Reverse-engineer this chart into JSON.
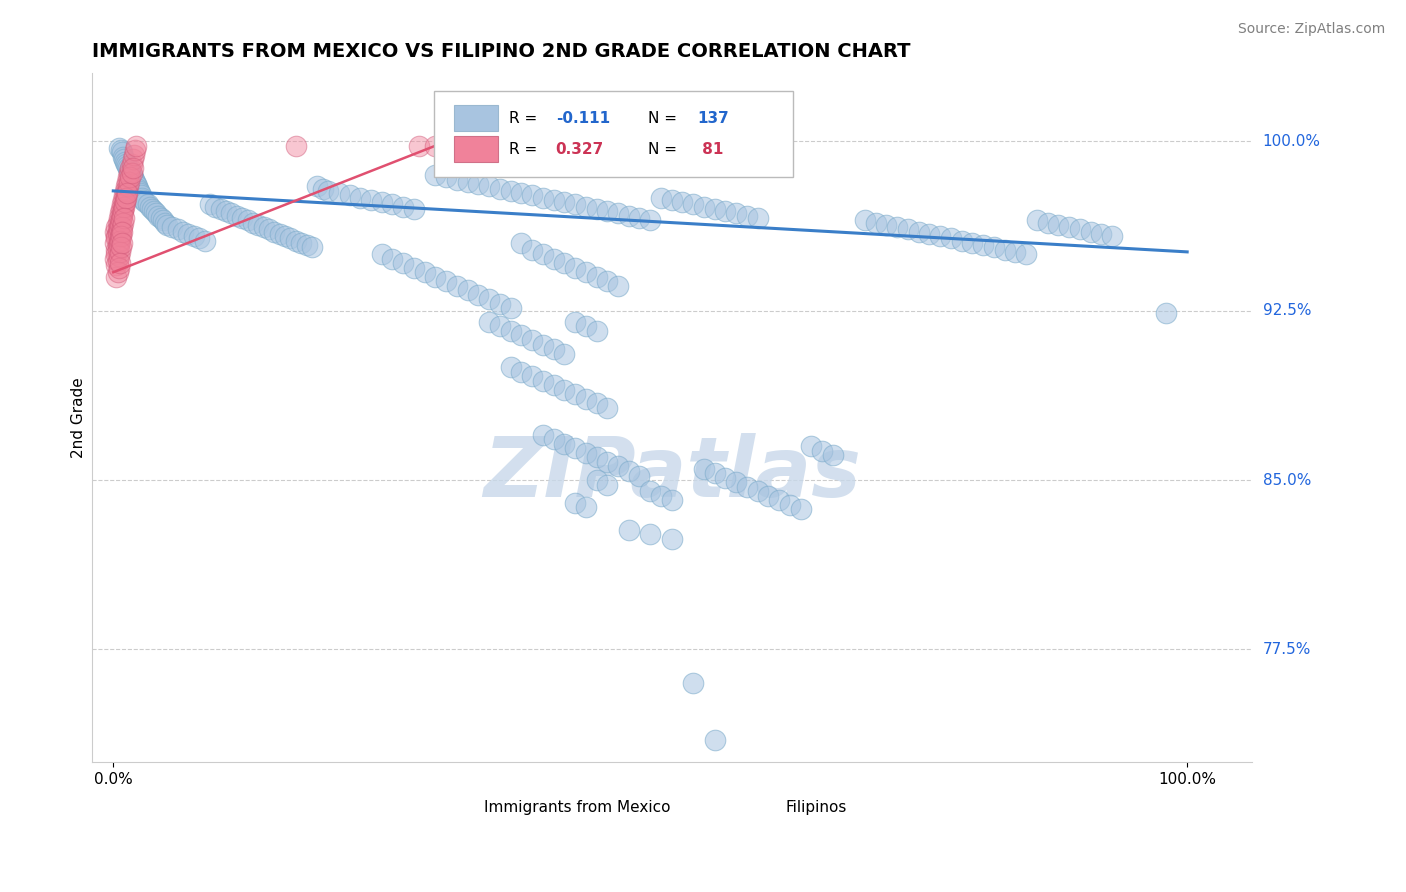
{
  "title": "IMMIGRANTS FROM MEXICO VS FILIPINO 2ND GRADE CORRELATION CHART",
  "source_text": "Source: ZipAtlas.com",
  "ylabel": "2nd Grade",
  "blue_scatter_color": "#a8c4e0",
  "pink_scatter_color": "#f0829a",
  "blue_line_color": "#3a7ec8",
  "pink_line_color": "#e05070",
  "blue_edge_color": "#7aaaca",
  "pink_edge_color": "#d05878",
  "ytick_labels": [
    "100.0%",
    "92.5%",
    "85.0%",
    "77.5%"
  ],
  "ytick_values": [
    1.0,
    0.925,
    0.85,
    0.775
  ],
  "xtick_labels": [
    "0.0%",
    "100.0%"
  ],
  "xtick_values": [
    0.0,
    1.0
  ],
  "xlim": [
    -0.02,
    1.06
  ],
  "ylim": [
    0.725,
    1.03
  ],
  "watermark_text": "ZIPatlas",
  "watermark_color": "#c8d8ea",
  "grid_color": "#cccccc",
  "title_fontsize": 14,
  "axis_label_fontsize": 11,
  "tick_label_fontsize": 11,
  "source_fontsize": 10,
  "legend_r_n": [
    {
      "R": "-0.111",
      "N": "137",
      "color": "#2266cc"
    },
    {
      "R": "0.327",
      "N": " 81",
      "color": "#cc3355"
    }
  ],
  "blue_dots": [
    [
      0.005,
      0.997
    ],
    [
      0.007,
      0.996
    ],
    [
      0.008,
      0.995
    ],
    [
      0.009,
      0.993
    ],
    [
      0.01,
      0.992
    ],
    [
      0.011,
      0.991
    ],
    [
      0.012,
      0.99
    ],
    [
      0.013,
      0.989
    ],
    [
      0.014,
      0.988
    ],
    [
      0.015,
      0.987
    ],
    [
      0.016,
      0.986
    ],
    [
      0.017,
      0.985
    ],
    [
      0.018,
      0.984
    ],
    [
      0.019,
      0.983
    ],
    [
      0.02,
      0.982
    ],
    [
      0.021,
      0.981
    ],
    [
      0.022,
      0.98
    ],
    [
      0.023,
      0.979
    ],
    [
      0.024,
      0.978
    ],
    [
      0.025,
      0.977
    ],
    [
      0.026,
      0.976
    ],
    [
      0.027,
      0.975
    ],
    [
      0.028,
      0.974
    ],
    [
      0.03,
      0.973
    ],
    [
      0.032,
      0.972
    ],
    [
      0.034,
      0.971
    ],
    [
      0.036,
      0.97
    ],
    [
      0.038,
      0.969
    ],
    [
      0.04,
      0.968
    ],
    [
      0.042,
      0.967
    ],
    [
      0.044,
      0.966
    ],
    [
      0.046,
      0.965
    ],
    [
      0.048,
      0.964
    ],
    [
      0.05,
      0.963
    ],
    [
      0.055,
      0.962
    ],
    [
      0.06,
      0.961
    ],
    [
      0.065,
      0.96
    ],
    [
      0.07,
      0.959
    ],
    [
      0.075,
      0.958
    ],
    [
      0.08,
      0.957
    ],
    [
      0.085,
      0.956
    ],
    [
      0.09,
      0.972
    ],
    [
      0.095,
      0.971
    ],
    [
      0.1,
      0.97
    ],
    [
      0.105,
      0.969
    ],
    [
      0.11,
      0.968
    ],
    [
      0.115,
      0.967
    ],
    [
      0.12,
      0.966
    ],
    [
      0.125,
      0.965
    ],
    [
      0.13,
      0.964
    ],
    [
      0.135,
      0.963
    ],
    [
      0.14,
      0.962
    ],
    [
      0.145,
      0.961
    ],
    [
      0.15,
      0.96
    ],
    [
      0.155,
      0.959
    ],
    [
      0.16,
      0.958
    ],
    [
      0.165,
      0.957
    ],
    [
      0.17,
      0.956
    ],
    [
      0.175,
      0.955
    ],
    [
      0.18,
      0.954
    ],
    [
      0.185,
      0.953
    ],
    [
      0.19,
      0.98
    ],
    [
      0.195,
      0.979
    ],
    [
      0.2,
      0.978
    ],
    [
      0.21,
      0.977
    ],
    [
      0.22,
      0.976
    ],
    [
      0.23,
      0.975
    ],
    [
      0.24,
      0.974
    ],
    [
      0.25,
      0.973
    ],
    [
      0.26,
      0.972
    ],
    [
      0.27,
      0.971
    ],
    [
      0.28,
      0.97
    ],
    [
      0.3,
      0.985
    ],
    [
      0.31,
      0.984
    ],
    [
      0.32,
      0.983
    ],
    [
      0.33,
      0.982
    ],
    [
      0.34,
      0.981
    ],
    [
      0.35,
      0.98
    ],
    [
      0.36,
      0.979
    ],
    [
      0.37,
      0.978
    ],
    [
      0.38,
      0.977
    ],
    [
      0.39,
      0.976
    ],
    [
      0.4,
      0.975
    ],
    [
      0.41,
      0.974
    ],
    [
      0.42,
      0.973
    ],
    [
      0.43,
      0.972
    ],
    [
      0.44,
      0.971
    ],
    [
      0.45,
      0.97
    ],
    [
      0.46,
      0.969
    ],
    [
      0.47,
      0.968
    ],
    [
      0.48,
      0.967
    ],
    [
      0.49,
      0.966
    ],
    [
      0.5,
      0.965
    ],
    [
      0.51,
      0.975
    ],
    [
      0.52,
      0.974
    ],
    [
      0.53,
      0.973
    ],
    [
      0.54,
      0.972
    ],
    [
      0.55,
      0.971
    ],
    [
      0.56,
      0.97
    ],
    [
      0.57,
      0.969
    ],
    [
      0.58,
      0.968
    ],
    [
      0.59,
      0.967
    ],
    [
      0.6,
      0.966
    ],
    [
      0.25,
      0.95
    ],
    [
      0.26,
      0.948
    ],
    [
      0.27,
      0.946
    ],
    [
      0.28,
      0.944
    ],
    [
      0.29,
      0.942
    ],
    [
      0.3,
      0.94
    ],
    [
      0.31,
      0.938
    ],
    [
      0.32,
      0.936
    ],
    [
      0.33,
      0.934
    ],
    [
      0.34,
      0.932
    ],
    [
      0.35,
      0.93
    ],
    [
      0.36,
      0.928
    ],
    [
      0.37,
      0.926
    ],
    [
      0.38,
      0.955
    ],
    [
      0.39,
      0.952
    ],
    [
      0.4,
      0.95
    ],
    [
      0.41,
      0.948
    ],
    [
      0.42,
      0.946
    ],
    [
      0.43,
      0.944
    ],
    [
      0.44,
      0.942
    ],
    [
      0.45,
      0.94
    ],
    [
      0.46,
      0.938
    ],
    [
      0.47,
      0.936
    ],
    [
      0.35,
      0.92
    ],
    [
      0.36,
      0.918
    ],
    [
      0.37,
      0.916
    ],
    [
      0.38,
      0.914
    ],
    [
      0.39,
      0.912
    ],
    [
      0.4,
      0.91
    ],
    [
      0.41,
      0.908
    ],
    [
      0.42,
      0.906
    ],
    [
      0.43,
      0.92
    ],
    [
      0.44,
      0.918
    ],
    [
      0.45,
      0.916
    ],
    [
      0.37,
      0.9
    ],
    [
      0.38,
      0.898
    ],
    [
      0.39,
      0.896
    ],
    [
      0.4,
      0.894
    ],
    [
      0.41,
      0.892
    ],
    [
      0.42,
      0.89
    ],
    [
      0.43,
      0.888
    ],
    [
      0.44,
      0.886
    ],
    [
      0.45,
      0.884
    ],
    [
      0.46,
      0.882
    ],
    [
      0.4,
      0.87
    ],
    [
      0.41,
      0.868
    ],
    [
      0.42,
      0.866
    ],
    [
      0.43,
      0.864
    ],
    [
      0.44,
      0.862
    ],
    [
      0.45,
      0.86
    ],
    [
      0.46,
      0.858
    ],
    [
      0.47,
      0.856
    ],
    [
      0.48,
      0.854
    ],
    [
      0.49,
      0.852
    ],
    [
      0.43,
      0.84
    ],
    [
      0.44,
      0.838
    ],
    [
      0.45,
      0.85
    ],
    [
      0.46,
      0.848
    ],
    [
      0.5,
      0.845
    ],
    [
      0.51,
      0.843
    ],
    [
      0.52,
      0.841
    ],
    [
      0.48,
      0.828
    ],
    [
      0.5,
      0.826
    ],
    [
      0.52,
      0.824
    ],
    [
      0.55,
      0.855
    ],
    [
      0.56,
      0.853
    ],
    [
      0.57,
      0.851
    ],
    [
      0.58,
      0.849
    ],
    [
      0.59,
      0.847
    ],
    [
      0.6,
      0.845
    ],
    [
      0.61,
      0.843
    ],
    [
      0.62,
      0.841
    ],
    [
      0.63,
      0.839
    ],
    [
      0.64,
      0.837
    ],
    [
      0.65,
      0.865
    ],
    [
      0.66,
      0.863
    ],
    [
      0.67,
      0.861
    ],
    [
      0.7,
      0.965
    ],
    [
      0.71,
      0.964
    ],
    [
      0.72,
      0.963
    ],
    [
      0.73,
      0.962
    ],
    [
      0.74,
      0.961
    ],
    [
      0.75,
      0.96
    ],
    [
      0.76,
      0.959
    ],
    [
      0.77,
      0.958
    ],
    [
      0.78,
      0.957
    ],
    [
      0.79,
      0.956
    ],
    [
      0.8,
      0.955
    ],
    [
      0.81,
      0.954
    ],
    [
      0.82,
      0.953
    ],
    [
      0.83,
      0.952
    ],
    [
      0.84,
      0.951
    ],
    [
      0.85,
      0.95
    ],
    [
      0.86,
      0.965
    ],
    [
      0.87,
      0.964
    ],
    [
      0.88,
      0.963
    ],
    [
      0.89,
      0.962
    ],
    [
      0.9,
      0.961
    ],
    [
      0.91,
      0.96
    ],
    [
      0.92,
      0.959
    ],
    [
      0.93,
      0.958
    ],
    [
      0.98,
      0.924
    ],
    [
      0.54,
      0.76
    ],
    [
      0.56,
      0.735
    ]
  ],
  "pink_dots": [
    [
      0.002,
      0.96
    ],
    [
      0.003,
      0.962
    ],
    [
      0.004,
      0.964
    ],
    [
      0.005,
      0.966
    ],
    [
      0.006,
      0.968
    ],
    [
      0.007,
      0.97
    ],
    [
      0.008,
      0.972
    ],
    [
      0.009,
      0.974
    ],
    [
      0.01,
      0.976
    ],
    [
      0.011,
      0.978
    ],
    [
      0.012,
      0.98
    ],
    [
      0.013,
      0.982
    ],
    [
      0.014,
      0.984
    ],
    [
      0.015,
      0.986
    ],
    [
      0.016,
      0.988
    ],
    [
      0.017,
      0.99
    ],
    [
      0.018,
      0.992
    ],
    [
      0.019,
      0.994
    ],
    [
      0.02,
      0.996
    ],
    [
      0.021,
      0.998
    ],
    [
      0.003,
      0.958
    ],
    [
      0.004,
      0.96
    ],
    [
      0.005,
      0.962
    ],
    [
      0.006,
      0.964
    ],
    [
      0.007,
      0.966
    ],
    [
      0.008,
      0.968
    ],
    [
      0.009,
      0.97
    ],
    [
      0.01,
      0.972
    ],
    [
      0.011,
      0.974
    ],
    [
      0.012,
      0.976
    ],
    [
      0.013,
      0.978
    ],
    [
      0.014,
      0.98
    ],
    [
      0.015,
      0.982
    ],
    [
      0.016,
      0.984
    ],
    [
      0.017,
      0.986
    ],
    [
      0.018,
      0.988
    ],
    [
      0.002,
      0.955
    ],
    [
      0.003,
      0.957
    ],
    [
      0.004,
      0.959
    ],
    [
      0.005,
      0.961
    ],
    [
      0.006,
      0.963
    ],
    [
      0.007,
      0.965
    ],
    [
      0.008,
      0.967
    ],
    [
      0.009,
      0.969
    ],
    [
      0.01,
      0.971
    ],
    [
      0.011,
      0.973
    ],
    [
      0.012,
      0.975
    ],
    [
      0.013,
      0.977
    ],
    [
      0.003,
      0.952
    ],
    [
      0.004,
      0.954
    ],
    [
      0.005,
      0.956
    ],
    [
      0.006,
      0.958
    ],
    [
      0.007,
      0.96
    ],
    [
      0.008,
      0.962
    ],
    [
      0.009,
      0.964
    ],
    [
      0.01,
      0.966
    ],
    [
      0.002,
      0.948
    ],
    [
      0.003,
      0.95
    ],
    [
      0.004,
      0.952
    ],
    [
      0.005,
      0.954
    ],
    [
      0.006,
      0.956
    ],
    [
      0.007,
      0.958
    ],
    [
      0.008,
      0.96
    ],
    [
      0.003,
      0.945
    ],
    [
      0.004,
      0.947
    ],
    [
      0.005,
      0.949
    ],
    [
      0.006,
      0.951
    ],
    [
      0.007,
      0.953
    ],
    [
      0.008,
      0.955
    ],
    [
      0.003,
      0.94
    ],
    [
      0.004,
      0.942
    ],
    [
      0.005,
      0.944
    ],
    [
      0.006,
      0.946
    ],
    [
      0.17,
      0.998
    ],
    [
      0.285,
      0.998
    ],
    [
      0.3,
      0.998
    ]
  ],
  "blue_line_x": [
    0.0,
    1.0
  ],
  "blue_line_y": [
    0.978,
    0.951
  ],
  "pink_line_x": [
    0.0,
    0.3
  ],
  "pink_line_y": [
    0.942,
    0.998
  ]
}
